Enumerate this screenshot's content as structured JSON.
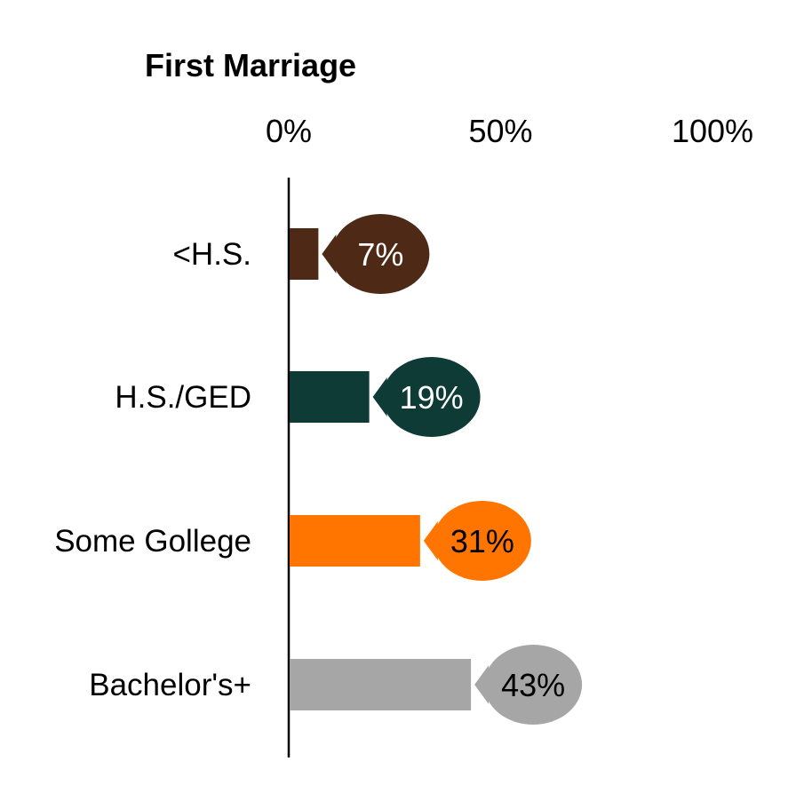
{
  "chart_data": {
    "type": "bar",
    "orientation": "horizontal",
    "title": "First Marriage",
    "categories": [
      "<H.S.",
      "H.S./GED",
      "Some Gollege",
      "Bachelor's+"
    ],
    "values": [
      7,
      19,
      31,
      43
    ],
    "data_labels": [
      "7%",
      "19%",
      "31%",
      "43%"
    ],
    "colors": [
      "#4D2916",
      "#0E3B36",
      "#FF7500",
      "#A6A6A6"
    ],
    "label_text_colors": [
      "#ffffff",
      "#ffffff",
      "#000000",
      "#000000"
    ],
    "xlim": [
      0,
      100
    ],
    "xticks": [
      0,
      50,
      100
    ],
    "xtick_labels": [
      "0%",
      "50%",
      "100%"
    ],
    "xlabel": "",
    "ylabel": "",
    "grid": false,
    "legend": "none"
  }
}
